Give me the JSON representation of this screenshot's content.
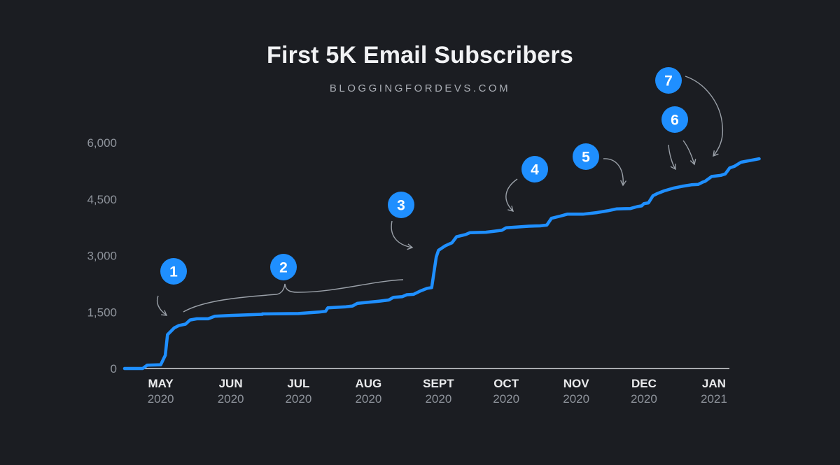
{
  "title": "First 5K Email Subscribers",
  "subtitle": "BLOGGINGFORDEVS.COM",
  "colors": {
    "background": "#1b1d22",
    "line": "#1f8fff",
    "badge": "#1f8fff",
    "annotation": "#9aa0a8"
  },
  "chart_data": {
    "type": "line",
    "title": "First 5K Email Subscribers",
    "subtitle": "BLOGGINGFORDEVS.COM",
    "xlabel": "",
    "ylabel": "",
    "ylim": [
      0,
      6000
    ],
    "xlim": [
      "2020-04-15",
      "2021-01-10"
    ],
    "y_ticks": [
      {
        "value": 0,
        "label": "0"
      },
      {
        "value": 1500,
        "label": "1,500"
      },
      {
        "value": 3000,
        "label": "3,000"
      },
      {
        "value": 4500,
        "label": "4,500"
      },
      {
        "value": 6000,
        "label": "6,000"
      }
    ],
    "x_ticks": [
      {
        "date": "2020-05-01",
        "month": "MAY",
        "year": "2020"
      },
      {
        "date": "2020-06-01",
        "month": "JUN",
        "year": "2020"
      },
      {
        "date": "2020-07-01",
        "month": "JUL",
        "year": "2020"
      },
      {
        "date": "2020-08-01",
        "month": "AUG",
        "year": "2020"
      },
      {
        "date": "2020-09-01",
        "month": "SEPT",
        "year": "2020"
      },
      {
        "date": "2020-10-01",
        "month": "OCT",
        "year": "2020"
      },
      {
        "date": "2020-11-01",
        "month": "NOV",
        "year": "2020"
      },
      {
        "date": "2020-12-01",
        "month": "DEC",
        "year": "2020"
      },
      {
        "date": "2021-01-01",
        "month": "JAN",
        "year": "2021"
      }
    ],
    "grid": false,
    "series": [
      {
        "points": [
          [
            "2020-04-15",
            0
          ],
          [
            "2020-04-23",
            0
          ],
          [
            "2020-04-25",
            90
          ],
          [
            "2020-05-01",
            100
          ],
          [
            "2020-05-03",
            350
          ],
          [
            "2020-05-04",
            900
          ],
          [
            "2020-05-07",
            1080
          ],
          [
            "2020-05-09",
            1140
          ],
          [
            "2020-05-12",
            1180
          ],
          [
            "2020-05-14",
            1290
          ],
          [
            "2020-05-17",
            1320
          ],
          [
            "2020-05-20",
            1320
          ],
          [
            "2020-05-22",
            1320
          ],
          [
            "2020-05-25",
            1390
          ],
          [
            "2020-06-01",
            1410
          ],
          [
            "2020-06-15",
            1440
          ],
          [
            "2020-06-15",
            1450
          ],
          [
            "2020-07-01",
            1460
          ],
          [
            "2020-07-10",
            1500
          ],
          [
            "2020-07-13",
            1520
          ],
          [
            "2020-07-14",
            1610
          ],
          [
            "2020-07-22",
            1640
          ],
          [
            "2020-07-25",
            1660
          ],
          [
            "2020-07-27",
            1730
          ],
          [
            "2020-08-01",
            1760
          ],
          [
            "2020-08-06",
            1790
          ],
          [
            "2020-08-10",
            1820
          ],
          [
            "2020-08-12",
            1890
          ],
          [
            "2020-08-16",
            1910
          ],
          [
            "2020-08-18",
            1960
          ],
          [
            "2020-08-21",
            1970
          ],
          [
            "2020-08-24",
            2060
          ],
          [
            "2020-08-27",
            2130
          ],
          [
            "2020-08-29",
            2150
          ],
          [
            "2020-08-31",
            2960
          ],
          [
            "2020-09-01",
            3140
          ],
          [
            "2020-09-04",
            3260
          ],
          [
            "2020-09-07",
            3340
          ],
          [
            "2020-09-09",
            3500
          ],
          [
            "2020-09-13",
            3560
          ],
          [
            "2020-09-15",
            3610
          ],
          [
            "2020-09-22",
            3620
          ],
          [
            "2020-09-29",
            3670
          ],
          [
            "2020-10-01",
            3740
          ],
          [
            "2020-10-06",
            3760
          ],
          [
            "2020-10-11",
            3780
          ],
          [
            "2020-10-16",
            3790
          ],
          [
            "2020-10-19",
            3810
          ],
          [
            "2020-10-21",
            3990
          ],
          [
            "2020-10-25",
            4050
          ],
          [
            "2020-10-28",
            4100
          ],
          [
            "2020-11-04",
            4100
          ],
          [
            "2020-11-10",
            4140
          ],
          [
            "2020-11-15",
            4190
          ],
          [
            "2020-11-19",
            4240
          ],
          [
            "2020-11-25",
            4250
          ],
          [
            "2020-11-28",
            4300
          ],
          [
            "2020-11-30",
            4320
          ],
          [
            "2020-12-01",
            4380
          ],
          [
            "2020-12-03",
            4400
          ],
          [
            "2020-12-05",
            4590
          ],
          [
            "2020-12-07",
            4650
          ],
          [
            "2020-12-10",
            4720
          ],
          [
            "2020-12-14",
            4790
          ],
          [
            "2020-12-18",
            4840
          ],
          [
            "2020-12-22",
            4880
          ],
          [
            "2020-12-25",
            4890
          ],
          [
            "2020-12-27",
            4950
          ],
          [
            "2020-12-28",
            4970
          ],
          [
            "2020-12-31",
            5100
          ],
          [
            "2021-01-04",
            5130
          ],
          [
            "2021-01-06",
            5170
          ],
          [
            "2021-01-08",
            5330
          ],
          [
            "2021-01-10",
            5370
          ],
          [
            "2021-01-13",
            5480
          ],
          [
            "2021-01-21",
            5570
          ]
        ]
      }
    ],
    "annotations": [
      {
        "label": "1",
        "date": "2020-05-04",
        "value": 1380
      },
      {
        "label": "2",
        "date_range": [
          "2020-05-17",
          "2020-08-27"
        ],
        "value": 2020
      },
      {
        "label": "3",
        "date": "2020-08-30",
        "value": 3000
      },
      {
        "label": "4",
        "date": "2020-10-20",
        "value": 4020
      },
      {
        "label": "5",
        "date": "2020-12-03",
        "value": 4620
      },
      {
        "label": "6",
        "dates": [
          "2020-12-26",
          "2020-12-31"
        ],
        "value": 5200
      },
      {
        "label": "7",
        "date": "2021-01-06",
        "value": 5480
      }
    ]
  }
}
